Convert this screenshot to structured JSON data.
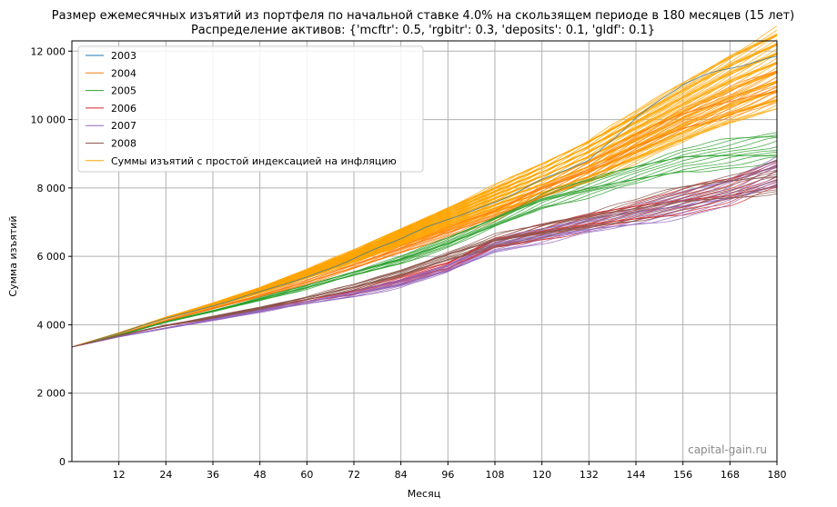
{
  "chart_data": {
    "type": "line",
    "title": "Размер ежемесячных изъятий из портфеля по начальной ставке 4.0% на скользящем периоде в 180 месяцев (15 лет)",
    "subtitle": "Распределение активов: {'mcftr': 0.5, 'rgbitr': 0.3, 'deposits': 0.1, 'gldf': 0.1}",
    "xlabel": "Месяц",
    "ylabel": "Сумма изъятий",
    "xlim": [
      0,
      180
    ],
    "ylim": [
      0,
      12300
    ],
    "x_ticks": [
      12,
      24,
      36,
      48,
      60,
      72,
      84,
      96,
      108,
      120,
      132,
      144,
      156,
      168,
      180
    ],
    "x_tick_labels": [
      "12",
      "24",
      "36",
      "48",
      "60",
      "72",
      "84",
      "96",
      "108",
      "120",
      "132",
      "144",
      "156",
      "168",
      "180"
    ],
    "y_ticks": [
      0,
      2000,
      4000,
      6000,
      8000,
      10000,
      12000
    ],
    "y_tick_labels": [
      "0",
      "2 000",
      "4 000",
      "6 000",
      "8 000",
      "10 000",
      "12 000"
    ],
    "grid": true,
    "legend_position": "top-left",
    "watermark": "capital-gain.ru",
    "series": [
      {
        "name": "2003",
        "color": "#1f77b4",
        "lines": 1,
        "x": [
          0,
          12,
          24,
          36,
          48,
          60,
          72,
          84,
          96,
          108,
          120,
          132,
          144,
          156,
          168,
          180
        ],
        "values": [
          3350,
          3750,
          4200,
          4550,
          4950,
          5400,
          5950,
          6500,
          7100,
          7600,
          8200,
          8800,
          10100,
          11000,
          11500,
          11900
        ]
      },
      {
        "name": "2004",
        "color": "#ff7f0e",
        "lines": 12,
        "x": [
          0,
          12,
          24,
          36,
          48,
          60,
          72,
          84,
          96,
          108,
          120,
          132,
          144,
          156,
          168,
          180
        ],
        "values": [
          3350,
          3720,
          4120,
          4480,
          4850,
          5250,
          5700,
          6200,
          6700,
          7200,
          7900,
          8500,
          9300,
          10000,
          10500,
          11000
        ]
      },
      {
        "name": "2005",
        "color": "#2ca02c",
        "lines": 12,
        "x": [
          0,
          12,
          24,
          36,
          48,
          60,
          72,
          84,
          96,
          108,
          120,
          132,
          144,
          156,
          168,
          180
        ],
        "values": [
          3350,
          3700,
          4080,
          4400,
          4750,
          5100,
          5500,
          5900,
          6400,
          7000,
          7600,
          8000,
          8400,
          8800,
          9000,
          9200
        ]
      },
      {
        "name": "2006",
        "color": "#d62728",
        "lines": 12,
        "x": [
          0,
          12,
          24,
          36,
          48,
          60,
          72,
          84,
          96,
          108,
          120,
          132,
          144,
          156,
          168,
          180
        ],
        "values": [
          3350,
          3680,
          3980,
          4200,
          4450,
          4700,
          4950,
          5300,
          5700,
          6400,
          6700,
          7000,
          7300,
          7600,
          7900,
          8400
        ]
      },
      {
        "name": "2007",
        "color": "#9467bd",
        "lines": 12,
        "x": [
          0,
          12,
          24,
          36,
          48,
          60,
          72,
          84,
          96,
          108,
          120,
          132,
          144,
          156,
          168,
          180
        ],
        "values": [
          3350,
          3650,
          3900,
          4150,
          4400,
          4650,
          4900,
          5200,
          5650,
          6300,
          6600,
          6900,
          7200,
          7500,
          7900,
          8500
        ]
      },
      {
        "name": "2008",
        "color": "#8c564b",
        "lines": 12,
        "x": [
          0,
          12,
          24,
          36,
          48,
          60,
          72,
          84,
          96,
          108,
          120,
          132,
          144,
          156,
          168,
          180
        ],
        "values": [
          3350,
          3680,
          3980,
          4220,
          4480,
          4780,
          5100,
          5500,
          6000,
          6450,
          6750,
          7050,
          7350,
          7700,
          8000,
          8300
        ]
      },
      {
        "name": "Суммы изъятий с простой индексацией на инфляцию",
        "color": "#ffa500",
        "lines": 60,
        "x": [
          0,
          12,
          24,
          36,
          48,
          60,
          72,
          84,
          96,
          108,
          120,
          132,
          144,
          156,
          168,
          180
        ],
        "values": [
          3350,
          3760,
          4200,
          4580,
          5000,
          5500,
          6000,
          6550,
          7100,
          7650,
          8200,
          8800,
          9500,
          10200,
          10900,
          11500
        ]
      }
    ]
  }
}
